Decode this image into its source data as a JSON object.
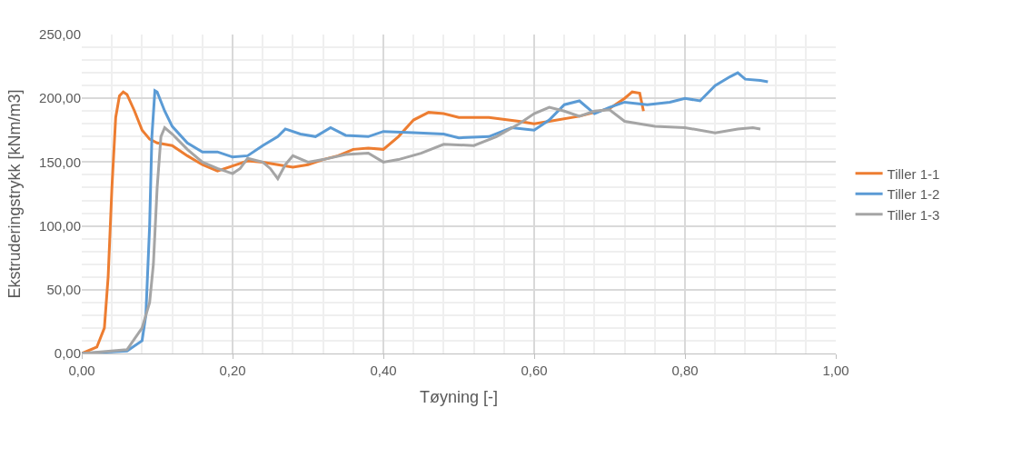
{
  "chart_data": {
    "type": "line",
    "xlabel": "Tøyning [-]",
    "ylabel": "Ekstruderingstrykk [kNm/m3]",
    "xlim": [
      0,
      1
    ],
    "ylim": [
      0,
      250
    ],
    "xticks": [
      {
        "value": 0,
        "label": "0,00"
      },
      {
        "value": 0.2,
        "label": "0,20"
      },
      {
        "value": 0.4,
        "label": "0,40"
      },
      {
        "value": 0.6,
        "label": "0,60"
      },
      {
        "value": 0.8,
        "label": "0,80"
      },
      {
        "value": 1,
        "label": "1,00"
      }
    ],
    "yticks": [
      {
        "value": 0,
        "label": "0,00"
      },
      {
        "value": 50,
        "label": "50,00"
      },
      {
        "value": 100,
        "label": "100,00"
      },
      {
        "value": 150,
        "label": "150,00"
      },
      {
        "value": 200,
        "label": "200,00"
      },
      {
        "value": 250,
        "label": "250,00"
      }
    ],
    "grid": true,
    "legend": "right",
    "marker": "none",
    "line_style": "solid",
    "series": [
      {
        "name": "Tiller 1-1",
        "color": "#ed7d31",
        "x": [
          0,
          0.02,
          0.03,
          0.035,
          0.04,
          0.045,
          0.05,
          0.055,
          0.06,
          0.07,
          0.08,
          0.09,
          0.1,
          0.12,
          0.14,
          0.16,
          0.18,
          0.2,
          0.22,
          0.24,
          0.26,
          0.28,
          0.3,
          0.32,
          0.34,
          0.36,
          0.38,
          0.4,
          0.42,
          0.44,
          0.46,
          0.48,
          0.5,
          0.54,
          0.58,
          0.6,
          0.62,
          0.66,
          0.7,
          0.72,
          0.73,
          0.74,
          0.745
        ],
        "values": [
          0,
          5,
          20,
          60,
          130,
          185,
          202,
          205,
          203,
          190,
          175,
          168,
          165,
          163,
          155,
          148,
          143,
          147,
          151,
          150,
          148,
          146,
          148,
          152,
          155,
          160,
          161,
          160,
          170,
          183,
          189,
          188,
          185,
          185,
          182,
          180,
          182,
          186,
          192,
          200,
          205,
          204,
          190
        ]
      },
      {
        "name": "Tiller 1-2",
        "color": "#5b9bd5",
        "x": [
          0,
          0.06,
          0.08,
          0.085,
          0.09,
          0.093,
          0.097,
          0.1,
          0.11,
          0.12,
          0.14,
          0.16,
          0.18,
          0.2,
          0.22,
          0.24,
          0.26,
          0.27,
          0.29,
          0.31,
          0.33,
          0.35,
          0.38,
          0.4,
          0.44,
          0.48,
          0.5,
          0.54,
          0.57,
          0.6,
          0.62,
          0.64,
          0.66,
          0.68,
          0.7,
          0.72,
          0.75,
          0.78,
          0.8,
          0.82,
          0.84,
          0.86,
          0.87,
          0.88,
          0.9,
          0.91
        ],
        "values": [
          0,
          2,
          10,
          30,
          100,
          170,
          206,
          205,
          190,
          178,
          165,
          158,
          158,
          154,
          155,
          163,
          170,
          176,
          172,
          170,
          177,
          171,
          170,
          174,
          173,
          172,
          169,
          170,
          177,
          175,
          183,
          195,
          198,
          188,
          193,
          197,
          195,
          197,
          200,
          198,
          210,
          217,
          220,
          215,
          214,
          213
        ]
      },
      {
        "name": "Tiller 1-3",
        "color": "#a5a5a5",
        "x": [
          0,
          0.06,
          0.08,
          0.09,
          0.095,
          0.1,
          0.105,
          0.11,
          0.12,
          0.14,
          0.16,
          0.18,
          0.2,
          0.21,
          0.22,
          0.24,
          0.25,
          0.26,
          0.27,
          0.28,
          0.3,
          0.32,
          0.35,
          0.38,
          0.4,
          0.42,
          0.45,
          0.48,
          0.52,
          0.55,
          0.58,
          0.6,
          0.62,
          0.64,
          0.66,
          0.68,
          0.7,
          0.72,
          0.76,
          0.8,
          0.84,
          0.87,
          0.89,
          0.9
        ],
        "values": [
          0,
          3,
          20,
          40,
          70,
          130,
          170,
          177,
          172,
          160,
          150,
          145,
          141,
          145,
          153,
          150,
          145,
          137,
          148,
          155,
          150,
          152,
          156,
          157,
          150,
          152,
          157,
          164,
          163,
          170,
          180,
          188,
          193,
          190,
          186,
          190,
          191,
          182,
          178,
          177,
          173,
          176,
          177,
          176
        ]
      }
    ]
  }
}
